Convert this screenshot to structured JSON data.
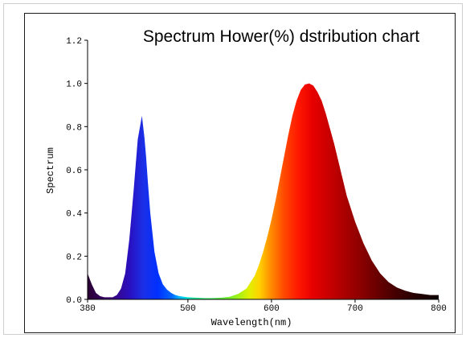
{
  "chart_data": {
    "type": "area",
    "title": "Spectrum Hower(%) dstribution chart",
    "xlabel": "Wavelength(nm)",
    "ylabel": "Spectrum",
    "xlim": [
      380,
      800
    ],
    "ylim": [
      0,
      1.2
    ],
    "x_ticks": [
      "380",
      "500",
      "600",
      "700",
      "800"
    ],
    "y_ticks": [
      "0.0",
      "0.2",
      "0.4",
      "0.6",
      "0.8",
      "1.0",
      "1.2"
    ],
    "grid": false,
    "legend": "none",
    "fill": "visible-spectrum gradient (violet-blue at short wavelengths through cyan, green, yellow, orange, red to dark red)",
    "series": [
      {
        "x": [
          380,
          385,
          390,
          395,
          400,
          405,
          410,
          415,
          420,
          425,
          430,
          435,
          440,
          445,
          448,
          450,
          452,
          455,
          460,
          465,
          470,
          475,
          480,
          485,
          490,
          495,
          500,
          510,
          520,
          530,
          540,
          550,
          560,
          570,
          575,
          580,
          585,
          590,
          595,
          600,
          605,
          610,
          615,
          620,
          625,
          630,
          635,
          640,
          645,
          650,
          655,
          660,
          665,
          670,
          675,
          680,
          685,
          690,
          700,
          710,
          720,
          730,
          740,
          750,
          760,
          770,
          780,
          790,
          800
        ],
        "y": [
          0.12,
          0.07,
          0.03,
          0.015,
          0.01,
          0.01,
          0.01,
          0.02,
          0.05,
          0.12,
          0.28,
          0.5,
          0.74,
          0.85,
          0.75,
          0.66,
          0.55,
          0.4,
          0.22,
          0.12,
          0.07,
          0.045,
          0.03,
          0.02,
          0.015,
          0.012,
          0.01,
          0.008,
          0.006,
          0.006,
          0.008,
          0.012,
          0.025,
          0.05,
          0.08,
          0.11,
          0.16,
          0.22,
          0.29,
          0.37,
          0.46,
          0.56,
          0.66,
          0.76,
          0.85,
          0.92,
          0.97,
          0.995,
          1.0,
          0.99,
          0.96,
          0.92,
          0.86,
          0.79,
          0.72,
          0.64,
          0.56,
          0.48,
          0.36,
          0.26,
          0.18,
          0.12,
          0.08,
          0.055,
          0.04,
          0.03,
          0.025,
          0.02,
          0.02
        ]
      }
    ]
  }
}
